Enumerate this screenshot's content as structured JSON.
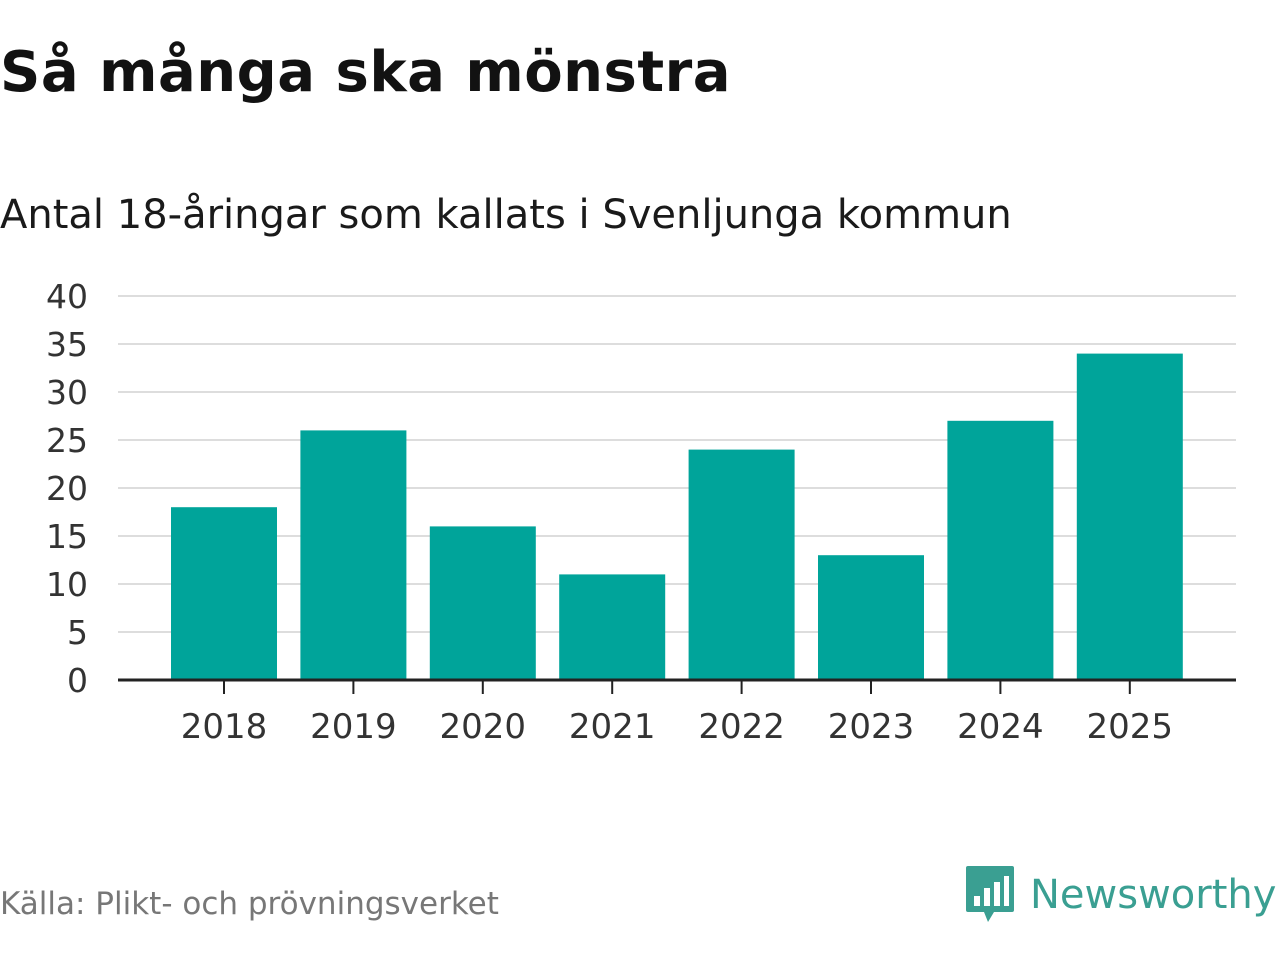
{
  "header": {
    "title": "Så många ska mönstra",
    "subtitle": "Antal 18-åringar som kallats i Svenljunga kommun"
  },
  "footer": {
    "source": "Källa: Plikt- och prövningsverket",
    "brand_name": "Newsworthy",
    "brand_icon": "bar-chart-speech-bubble-icon"
  },
  "colors": {
    "bar": "#00a49a",
    "grid": "#dddddd",
    "axis": "#222222",
    "brand": "#3a9f92"
  },
  "chart_data": {
    "type": "bar",
    "title": "Så många ska mönstra",
    "subtitle": "Antal 18-åringar som kallats i Svenljunga kommun",
    "xlabel": "",
    "ylabel": "",
    "categories": [
      "2018",
      "2019",
      "2020",
      "2021",
      "2022",
      "2023",
      "2024",
      "2025"
    ],
    "values": [
      18,
      26,
      16,
      11,
      24,
      13,
      27,
      34
    ],
    "ylim": [
      0,
      40
    ],
    "yticks": [
      0,
      5,
      10,
      15,
      20,
      25,
      30,
      35,
      40
    ],
    "grid": true,
    "legend": "none"
  }
}
